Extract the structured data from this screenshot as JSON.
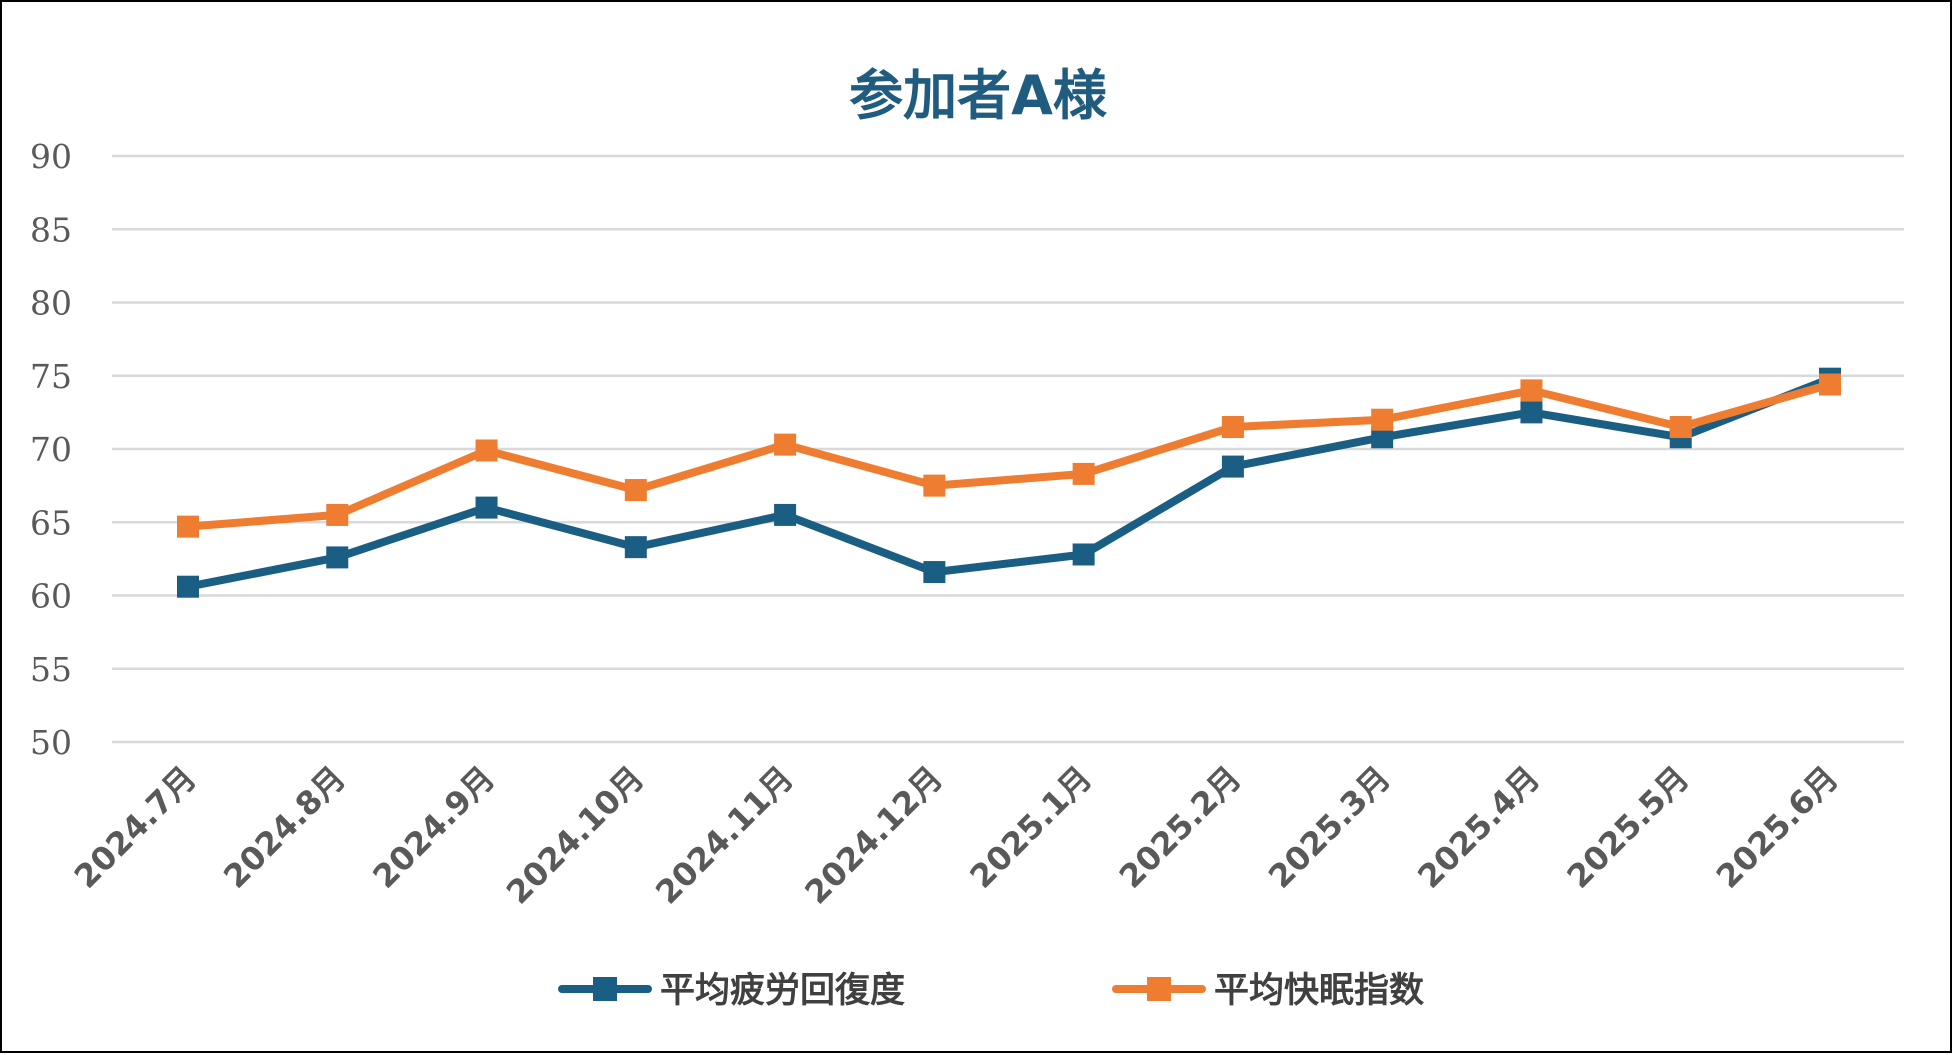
{
  "colors": {
    "title": "#1F5C7F",
    "series_fatigue": "#1B5E83",
    "series_sleep": "#EE7D31",
    "grid": "#D9D9D9",
    "tick_text": "#595959",
    "legend_text": "#404040",
    "border": "#000000"
  },
  "chart_data": {
    "type": "line",
    "title": "参加者A様",
    "xlabel": "",
    "ylabel": "",
    "categories": [
      "2024.7月",
      "2024.8月",
      "2024.9月",
      "2024.10月",
      "2024.11月",
      "2024.12月",
      "2025.1月",
      "2025.2月",
      "2025.3月",
      "2025.4月",
      "2025.5月",
      "2025.6月"
    ],
    "ylim": [
      50,
      90
    ],
    "yticks": [
      50,
      55,
      60,
      65,
      70,
      75,
      80,
      85,
      90
    ],
    "grid": "horizontal",
    "legend_position": "bottom",
    "marker": "square",
    "series": [
      {
        "name": "平均疲労回復度",
        "color_key": "series_fatigue",
        "values": [
          60.6,
          62.6,
          66.0,
          63.3,
          65.5,
          61.6,
          62.8,
          68.8,
          70.8,
          72.5,
          70.8,
          74.8
        ]
      },
      {
        "name": "平均快眠指数",
        "color_key": "series_sleep",
        "values": [
          64.7,
          65.5,
          69.9,
          67.2,
          70.3,
          67.5,
          68.3,
          71.5,
          72.0,
          74.0,
          71.5,
          74.4
        ]
      }
    ]
  }
}
